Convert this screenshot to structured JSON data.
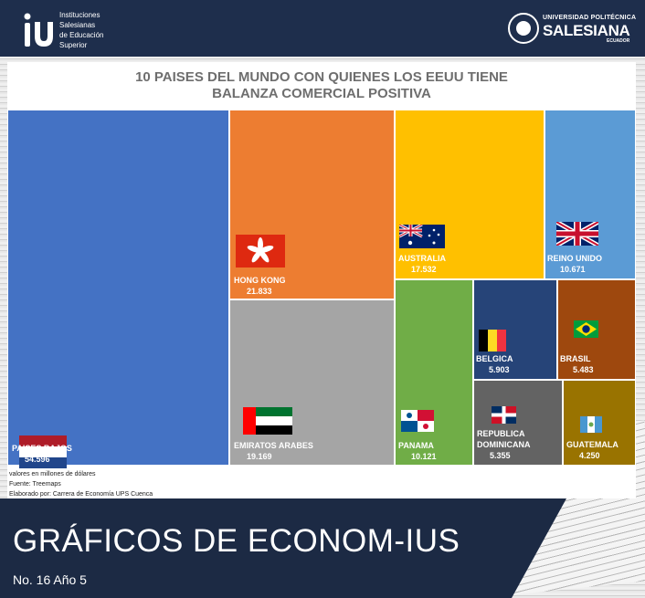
{
  "header": {
    "left_logo_lines": [
      "Instituciones",
      "Salesianas",
      "de Educación",
      "Superior"
    ],
    "right_logo_top": "UNIVERSIDAD POLITÉCNICA",
    "right_logo_main": "SALESIANA",
    "right_logo_bottom": "ECUADOR"
  },
  "chart_data": {
    "type": "treemap",
    "title": "10 PAISES DEL MUNDO CON QUIENES LOS EEUU TIENE BALANZA COMERCIAL POSITIVA",
    "title_lines": [
      "10 PAISES DEL MUNDO CON QUIENES LOS EEUU TIENE",
      "BALANZA COMERCIAL POSITIVA"
    ],
    "items": [
      {
        "label": "PAISES BAJOS",
        "value_label": "54.596",
        "value": 54.596,
        "color": "#4472c4"
      },
      {
        "label": "HONG KONG",
        "value_label": "21.833",
        "value": 21.833,
        "color": "#ed7d31"
      },
      {
        "label": "EMIRATOS ARABES",
        "value_label": "19.169",
        "value": 19.169,
        "color": "#a5a5a5"
      },
      {
        "label": "AUSTRALIA",
        "value_label": "17.532",
        "value": 17.532,
        "color": "#ffc000"
      },
      {
        "label": "REINO UNIDO",
        "value_label": "10.671",
        "value": 10.671,
        "color": "#5b9bd5"
      },
      {
        "label": "PANAMA",
        "value_label": "10.121",
        "value": 10.121,
        "color": "#70ad47"
      },
      {
        "label": "BELGICA",
        "value_label": "5.903",
        "value": 5.903,
        "color": "#264478"
      },
      {
        "label": "BRASIL",
        "value_label": "5.483",
        "value": 5.483,
        "color": "#9e480e"
      },
      {
        "label": "REPUBLICA DOMINICANA",
        "value_label": "5.355",
        "value": 5.355,
        "color": "#636363"
      },
      {
        "label": "GUATEMALA",
        "value_label": "4.250",
        "value": 4.25,
        "color": "#997300"
      }
    ],
    "notes": [
      "valores en millones de dólares",
      "Fuente: Treemaps",
      "Elaborado por: Carrera de Economía UPS Cuenca"
    ]
  },
  "footer": {
    "title": "GRÁFICOS DE ECONOM-IUS",
    "subtitle": "No. 16 Año 5"
  }
}
